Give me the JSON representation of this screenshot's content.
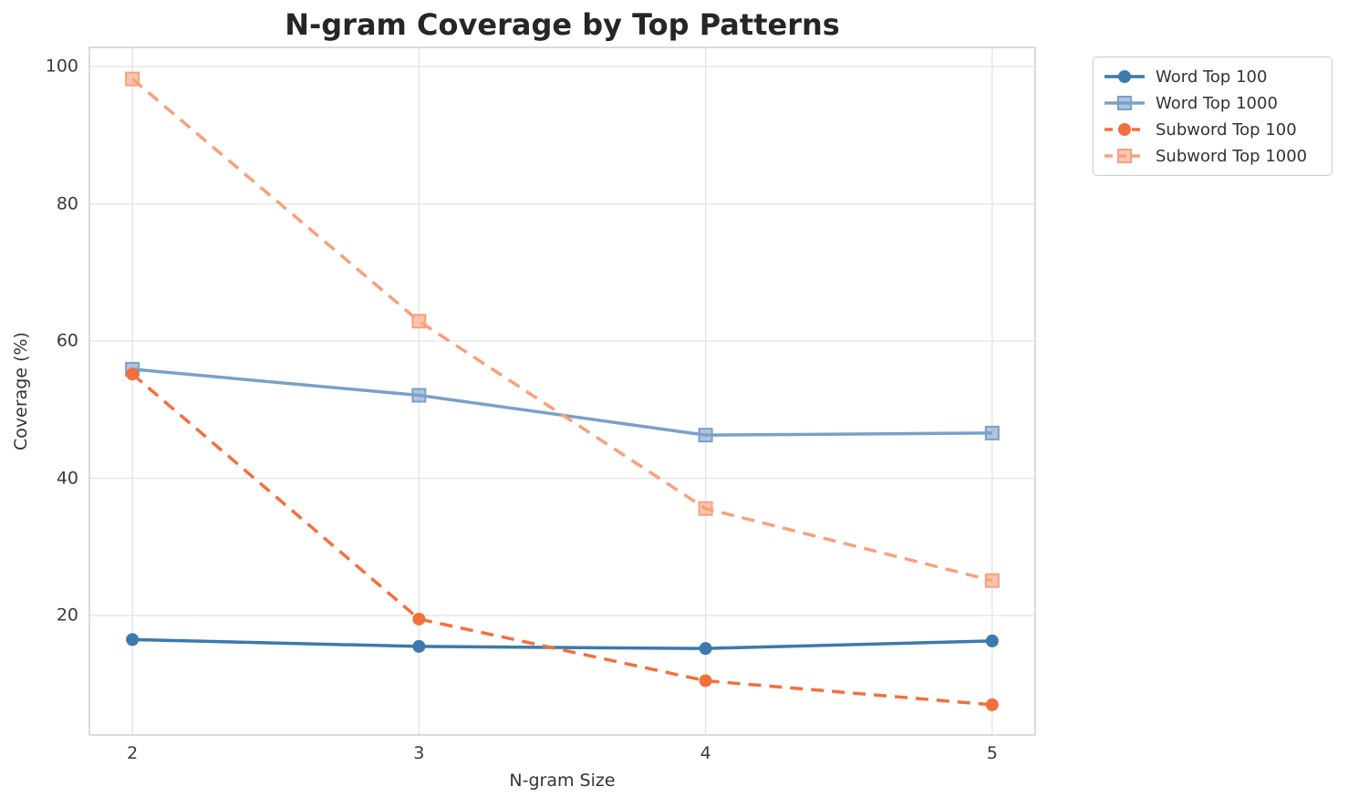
{
  "chart_data": {
    "type": "line",
    "title": "N-gram Coverage by Top Patterns",
    "xlabel": "N-gram Size",
    "ylabel": "Coverage (%)",
    "x": [
      2,
      3,
      4,
      5
    ],
    "xticks": [
      2,
      3,
      4,
      5
    ],
    "yticks": [
      20,
      40,
      60,
      80,
      100
    ],
    "xlim": [
      1.85,
      5.15
    ],
    "ylim": [
      2.6,
      102.8
    ],
    "grid": true,
    "legend_position": "outside upper right",
    "series": [
      {
        "name": "Word Top 100",
        "color": "#3c79ad",
        "marker": "circle",
        "line": "solid",
        "values": [
          16.5,
          15.5,
          15.2,
          16.3
        ]
      },
      {
        "name": "Word Top 1000",
        "color": "#7aa0c8",
        "marker": "square",
        "line": "solid",
        "values": [
          55.9,
          52.1,
          46.3,
          46.6
        ]
      },
      {
        "name": "Subword Top 100",
        "color": "#f3703c",
        "marker": "circle",
        "line": "dashed",
        "values": [
          55.2,
          19.5,
          10.5,
          7.0
        ]
      },
      {
        "name": "Subword Top 1000",
        "color": "#f8a07d",
        "marker": "square",
        "line": "dashed",
        "values": [
          98.2,
          62.9,
          35.6,
          25.1
        ]
      }
    ]
  },
  "colors": {
    "background": "#ffffff",
    "grid": "#e5e5e5",
    "axis_border": "#cfcfcf",
    "title": "#262626",
    "tick": "#3a3a3a",
    "label": "#333333",
    "legend_border": "#cccccc"
  }
}
